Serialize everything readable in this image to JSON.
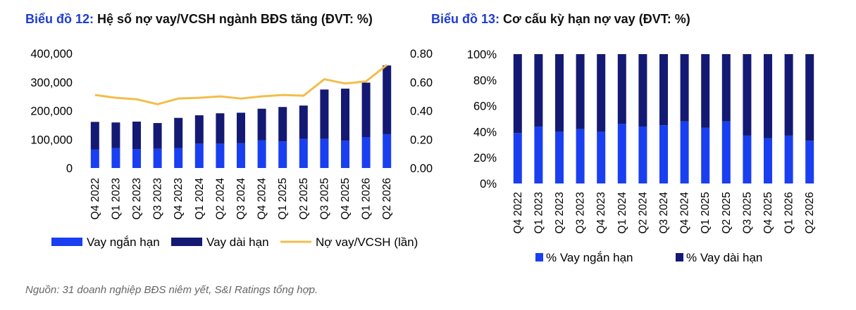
{
  "chart_titles": {
    "left_number": "Biểu đồ 12:",
    "left_text": "Hệ số nợ vay/VCSH ngành BĐS tăng (ĐVT: %)",
    "right_number": "Biểu đồ 13:",
    "right_text": "Cơ cấu kỳ hạn nợ vay (ĐVT: %)"
  },
  "source_note": "Nguồn: 31 doanh nghiệp BĐS niêm yết,  S&I Ratings tổng hợp.",
  "colors": {
    "short_term": "#1a3ff0",
    "long_term": "#141a73",
    "ratio_line": "#f2be4a",
    "title_accent": "#1f3ccf"
  },
  "chart_data": [
    {
      "type": "bar",
      "stacked": true,
      "title": "Biểu đồ 12: Hệ số nợ vay/VCSH ngành BĐS tăng (ĐVT: %)",
      "categories": [
        "Q4 2022",
        "Q1 2023",
        "Q2 2023",
        "Q3 2023",
        "Q4 2023",
        "Q1 2024",
        "Q2 2024",
        "Q3 2024",
        "Q4 2024",
        "Q1 2025",
        "Q2 2025",
        "Q3 2025",
        "Q4 2025",
        "Q1 2026",
        "Q2 2026"
      ],
      "series": [
        {
          "name": "Vay ngắn hạn",
          "type": "bar",
          "axis": "left",
          "values": [
            65000,
            70000,
            66000,
            67000,
            70000,
            85000,
            85000,
            87000,
            97000,
            93000,
            102000,
            102000,
            95000,
            108000,
            118000
          ]
        },
        {
          "name": "Vay dài hạn",
          "type": "bar",
          "axis": "left",
          "values": [
            96000,
            89000,
            96000,
            90000,
            105000,
            99000,
            106000,
            106000,
            110000,
            120000,
            116000,
            172000,
            182000,
            190000,
            240000
          ]
        },
        {
          "name": "Nợ vay/VCSH (lần)",
          "type": "line",
          "axis": "right",
          "values": [
            0.51,
            0.49,
            0.48,
            0.445,
            0.485,
            0.49,
            0.5,
            0.485,
            0.5,
            0.51,
            0.505,
            0.62,
            0.59,
            0.605,
            0.72
          ]
        }
      ],
      "ylim_left": [
        0,
        400000
      ],
      "yticks_left": [
        "0",
        "100,000",
        "200,000",
        "300,000",
        "400,000"
      ],
      "ylim_right": [
        0,
        0.8
      ],
      "yticks_right": [
        "0.00",
        "0.20",
        "0.40",
        "0.60",
        "0.80"
      ],
      "legend": [
        "Vay ngắn hạn",
        "Vay dài hạn",
        "Nợ vay/VCSH (lần)"
      ],
      "legend_position": "bottom",
      "grid": false
    },
    {
      "type": "bar",
      "stacked": true,
      "percent": true,
      "title": "Biểu đồ 13: Cơ cấu kỳ hạn nợ vay (ĐVT: %)",
      "categories": [
        "Q4 2022",
        "Q1 2023",
        "Q2 2023",
        "Q3 2023",
        "Q4 2023",
        "Q1 2024",
        "Q2 2024",
        "Q3 2024",
        "Q4 2024",
        "Q1 2025",
        "Q2 2025",
        "Q3 2025",
        "Q4 2025",
        "Q1 2026",
        "Q2 2026"
      ],
      "series": [
        {
          "name": "% Vay ngắn hạn",
          "values": [
            39,
            44,
            40,
            42,
            40,
            46,
            44,
            45,
            48,
            43,
            48,
            37,
            35,
            37,
            33
          ]
        },
        {
          "name": "% Vay dài hạn",
          "values": [
            61,
            56,
            60,
            58,
            60,
            54,
            56,
            55,
            52,
            57,
            52,
            63,
            65,
            63,
            67
          ]
        }
      ],
      "ylim": [
        0,
        100
      ],
      "yticks": [
        "0%",
        "20%",
        "40%",
        "60%",
        "80%",
        "100%"
      ],
      "legend": [
        "% Vay ngắn hạn",
        "% Vay dài hạn"
      ],
      "legend_position": "bottom",
      "grid": false
    }
  ]
}
